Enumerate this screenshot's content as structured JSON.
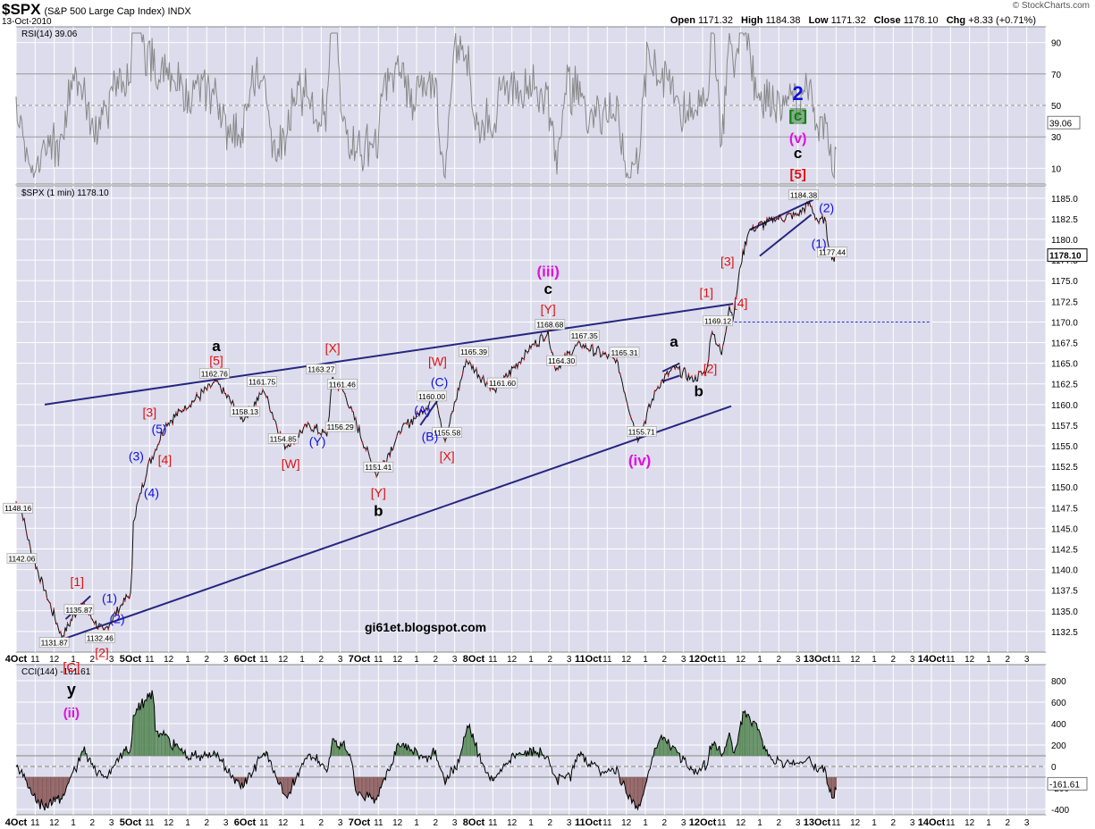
{
  "header": {
    "symbol": "$SPX",
    "description": "(S&P 500 Large Cap Index) INDX",
    "date": "13-Oct-2010",
    "open_label": "Open",
    "open": "1171.32",
    "high_label": "High",
    "high": "1184.38",
    "low_label": "Low",
    "low": "1171.32",
    "close_label": "Close",
    "close": "1178.10",
    "chg_label": "Chg",
    "chg": "+8.33 (+0.71%)",
    "credit": "© StockCharts.com"
  },
  "watermark": "gi61et.blogspot.com",
  "colors": {
    "panel_bg": "#dcdcec",
    "grid": "#ffffff",
    "trend": "#262680",
    "wave_red": "#e01010",
    "wave_blue": "#1010e0",
    "wave_magenta": "#e010e0",
    "wave_green": "#108010",
    "price_line": "#111111",
    "rsi_line": "#888888",
    "cci_pos": "#5a8a5a",
    "cci_neg": "#8a5a5a"
  },
  "chart_data": [
    {
      "type": "line",
      "name": "RSI",
      "label": "RSI(14) 39.06",
      "current": "39.06",
      "y_ticks": [
        "10",
        "30",
        "50",
        "70",
        "90"
      ],
      "ylim": [
        0,
        100
      ],
      "notes": [
        "2",
        "[c]",
        "(v)",
        "c",
        "[5]"
      ]
    },
    {
      "type": "line",
      "name": "$SPX (1 min)",
      "label": "$SPX (1 min) 1178.10",
      "current": "1178.10",
      "ylim": [
        1130,
        1186.5
      ],
      "y_ticks": [
        "1132.5",
        "1135.0",
        "1137.5",
        "1140.0",
        "1142.5",
        "1145.0",
        "1147.5",
        "1150.0",
        "1152.5",
        "1155.0",
        "1157.5",
        "1160.0",
        "1162.5",
        "1165.0",
        "1167.5",
        "1170.0",
        "1172.5",
        "1175.0",
        "1177.5",
        "1180.0",
        "1182.5",
        "1185.0"
      ],
      "x_ticks": [
        "4Oct",
        "11",
        "12",
        "1",
        "2",
        "3",
        "5Oct",
        "11",
        "12",
        "1",
        "2",
        "3",
        "6Oct",
        "11",
        "12",
        "1",
        "2",
        "3",
        "7Oct",
        "11",
        "12",
        "1",
        "2",
        "3",
        "8Oct",
        "11",
        "12",
        "1",
        "2",
        "3",
        "11Oct",
        "11",
        "12",
        "1",
        "2",
        "3",
        "12Oct",
        "11",
        "12",
        "1",
        "2",
        "3",
        "13Oct",
        "11",
        "12",
        "1",
        "2",
        "3",
        "14Oct",
        "11",
        "12",
        "1",
        "2",
        "3"
      ],
      "key_points": [
        {
          "t": 0,
          "v": 1148.16
        },
        {
          "t": 0.3,
          "v": 1147.0
        },
        {
          "t": 0.8,
          "v": 1142.06
        },
        {
          "t": 1.5,
          "v": 1137.5
        },
        {
          "t": 2.4,
          "v": 1131.87
        },
        {
          "t": 3.4,
          "v": 1135.87
        },
        {
          "t": 4.0,
          "v": 1134.0
        },
        {
          "t": 4.6,
          "v": 1132.46
        },
        {
          "t": 5.6,
          "v": 1136.0
        },
        {
          "t": 6.0,
          "v": 1137.0
        },
        {
          "t": 6.08,
          "v": 1140.0
        },
        {
          "t": 6.15,
          "v": 1146.0
        },
        {
          "t": 6.5,
          "v": 1149.0
        },
        {
          "t": 6.9,
          "v": 1152.5
        },
        {
          "t": 7.3,
          "v": 1154.5
        },
        {
          "t": 7.8,
          "v": 1157.5
        },
        {
          "t": 8.8,
          "v": 1159.5
        },
        {
          "t": 10.5,
          "v": 1162.76
        },
        {
          "t": 11.9,
          "v": 1158.13
        },
        {
          "t": 13.0,
          "v": 1161.75
        },
        {
          "t": 14.1,
          "v": 1154.85
        },
        {
          "t": 15.3,
          "v": 1157.5
        },
        {
          "t": 16.3,
          "v": 1156.29
        },
        {
          "t": 16.6,
          "v": 1163.27
        },
        {
          "t": 17.2,
          "v": 1161.46
        },
        {
          "t": 18.9,
          "v": 1151.41
        },
        {
          "t": 20.2,
          "v": 1157.0
        },
        {
          "t": 21.2,
          "v": 1159.0
        },
        {
          "t": 22.0,
          "v": 1161.2
        },
        {
          "t": 22.5,
          "v": 1155.58
        },
        {
          "t": 23.6,
          "v": 1165.39
        },
        {
          "t": 25.1,
          "v": 1161.6
        },
        {
          "t": 27.0,
          "v": 1167.0
        },
        {
          "t": 27.9,
          "v": 1168.68
        },
        {
          "t": 28.3,
          "v": 1164.3
        },
        {
          "t": 29.5,
          "v": 1167.35
        },
        {
          "t": 31.5,
          "v": 1165.31
        },
        {
          "t": 32.6,
          "v": 1155.71
        },
        {
          "t": 33.6,
          "v": 1162.0
        },
        {
          "t": 34.5,
          "v": 1164.5
        },
        {
          "t": 35.5,
          "v": 1163.0
        },
        {
          "t": 36.2,
          "v": 1164.0
        },
        {
          "t": 36.5,
          "v": 1169.12
        },
        {
          "t": 37.0,
          "v": 1166.0
        },
        {
          "t": 37.4,
          "v": 1172.0
        },
        {
          "t": 37.6,
          "v": 1170.5
        },
        {
          "t": 38.0,
          "v": 1177.0
        },
        {
          "t": 38.4,
          "v": 1181.0
        },
        {
          "t": 39.8,
          "v": 1182.5
        },
        {
          "t": 41.0,
          "v": 1183.0
        },
        {
          "t": 41.6,
          "v": 1184.38
        },
        {
          "t": 42.1,
          "v": 1182.0
        },
        {
          "t": 42.4,
          "v": 1182.5
        },
        {
          "t": 42.6,
          "v": 1179.5
        },
        {
          "t": 42.9,
          "v": 1177.44
        },
        {
          "t": 43.0,
          "v": 1178.1
        }
      ],
      "price_labels": [
        {
          "text": "1148.16",
          "t": 0.1,
          "v": 1148.16
        },
        {
          "text": "1142.06",
          "t": 0.3,
          "v": 1142.06
        },
        {
          "text": "1131.87",
          "t": 2.0,
          "v": 1131.87
        },
        {
          "text": "1135.87",
          "t": 3.3,
          "v": 1135.87
        },
        {
          "text": "1132.46",
          "t": 4.4,
          "v": 1132.46
        },
        {
          "text": "1162.76",
          "t": 10.4,
          "v": 1162.76
        },
        {
          "text": "1158.13",
          "t": 12.0,
          "v": 1158.13
        },
        {
          "text": "1161.75",
          "t": 12.9,
          "v": 1161.75
        },
        {
          "text": "1154.85",
          "t": 14.0,
          "v": 1154.85
        },
        {
          "text": "1163.27",
          "t": 16.0,
          "v": 1163.27
        },
        {
          "text": "1161.46",
          "t": 17.1,
          "v": 1161.46
        },
        {
          "text": "1156.29",
          "t": 17.0,
          "v": 1156.29
        },
        {
          "text": "1151.41",
          "t": 19.0,
          "v": 1151.41
        },
        {
          "text": "1160.00",
          "t": 21.8,
          "v": 1160.0
        },
        {
          "text": "1155.58",
          "t": 22.6,
          "v": 1155.58
        },
        {
          "text": "1165.39",
          "t": 24.0,
          "v": 1165.39
        },
        {
          "text": "1161.60",
          "t": 25.5,
          "v": 1161.6
        },
        {
          "text": "1168.68",
          "t": 28.0,
          "v": 1168.68
        },
        {
          "text": "1164.30",
          "t": 28.6,
          "v": 1164.3
        },
        {
          "text": "1167.35",
          "t": 29.8,
          "v": 1167.35
        },
        {
          "text": "1165.31",
          "t": 31.9,
          "v": 1165.31
        },
        {
          "text": "1155.71",
          "t": 32.8,
          "v": 1155.71
        },
        {
          "text": "1169.12",
          "t": 36.8,
          "v": 1169.12
        },
        {
          "text": "1184.38",
          "t": 41.3,
          "v": 1184.38
        },
        {
          "text": "1177.44",
          "t": 42.8,
          "v": 1177.44
        }
      ],
      "annotations": [
        {
          "text": "[1]",
          "t": 3.2,
          "v": 1138.0,
          "color": "red"
        },
        {
          "text": "(1)",
          "t": 4.9,
          "v": 1136.0,
          "color": "blue"
        },
        {
          "text": "(2)",
          "t": 5.3,
          "v": 1133.5,
          "color": "blue"
        },
        {
          "text": "[2]",
          "t": 4.5,
          "v": 1129.4,
          "color": "red"
        },
        {
          "text": "(3)",
          "t": 6.3,
          "v": 1153.2,
          "color": "blue"
        },
        {
          "text": "(4)",
          "t": 7.1,
          "v": 1148.8,
          "color": "blue"
        },
        {
          "text": "(5)",
          "t": 7.5,
          "v": 1156.5,
          "color": "blue"
        },
        {
          "text": "[3]",
          "t": 7.0,
          "v": 1158.5,
          "color": "red"
        },
        {
          "text": "[4]",
          "t": 7.8,
          "v": 1152.8,
          "color": "red"
        },
        {
          "text": "a",
          "t": 10.5,
          "v": 1166.5,
          "color": "black"
        },
        {
          "text": "[5]",
          "t": 10.5,
          "v": 1164.8,
          "color": "red"
        },
        {
          "text": "[W]",
          "t": 14.4,
          "v": 1152.3,
          "color": "red"
        },
        {
          "text": "(Y)",
          "t": 15.8,
          "v": 1155.0,
          "color": "blue"
        },
        {
          "text": "[X]",
          "t": 16.6,
          "v": 1166.3,
          "color": "red"
        },
        {
          "text": "[Y]",
          "t": 19.0,
          "v": 1148.8,
          "color": "red"
        },
        {
          "text": "b",
          "t": 19.0,
          "v": 1146.5,
          "color": "black"
        },
        {
          "text": "(A)",
          "t": 21.3,
          "v": 1158.8,
          "color": "blue"
        },
        {
          "text": "(C)",
          "t": 22.2,
          "v": 1162.2,
          "color": "blue"
        },
        {
          "text": "[W]",
          "t": 22.1,
          "v": 1164.7,
          "color": "red"
        },
        {
          "text": "(B)",
          "t": 21.7,
          "v": 1155.6,
          "color": "blue"
        },
        {
          "text": "[X]",
          "t": 22.6,
          "v": 1153.2,
          "color": "red"
        },
        {
          "text": "(iii)",
          "t": 27.9,
          "v": 1175.5,
          "color": "magenta"
        },
        {
          "text": "c",
          "t": 27.9,
          "v": 1173.4,
          "color": "black"
        },
        {
          "text": "[Y]",
          "t": 27.9,
          "v": 1171.0,
          "color": "red"
        },
        {
          "text": "(iv)",
          "t": 32.7,
          "v": 1152.6,
          "color": "magenta"
        },
        {
          "text": "a",
          "t": 34.5,
          "v": 1167.0,
          "color": "black"
        },
        {
          "text": "b",
          "t": 35.8,
          "v": 1161.0,
          "color": "black"
        },
        {
          "text": "[2]",
          "t": 36.4,
          "v": 1163.8,
          "color": "red"
        },
        {
          "text": "[1]",
          "t": 36.2,
          "v": 1173.0,
          "color": "red"
        },
        {
          "text": "[3]",
          "t": 37.3,
          "v": 1176.8,
          "color": "red"
        },
        {
          "text": "[4]",
          "t": 38.0,
          "v": 1171.8,
          "color": "red"
        },
        {
          "text": "(2)",
          "t": 42.5,
          "v": 1183.3,
          "color": "blue"
        },
        {
          "text": "(1)",
          "t": 42.1,
          "v": 1179.0,
          "color": "blue"
        }
      ],
      "trendlines": [
        {
          "t1": 1.5,
          "v1": 1160.0,
          "t2": 37.6,
          "v2": 1172.2
        },
        {
          "t1": 2.5,
          "v1": 1131.6,
          "t2": 37.5,
          "v2": 1159.8
        },
        {
          "t1": 36.5,
          "v1": 1170.0,
          "t2": 48.0,
          "v2": 1170.0,
          "dashed": true
        },
        {
          "t1": 38.5,
          "v1": 1181.2,
          "t2": 41.8,
          "v2": 1184.8
        },
        {
          "t1": 39.0,
          "v1": 1178.0,
          "t2": 41.7,
          "v2": 1183.0
        },
        {
          "t1": 2.6,
          "v1": 1134.0,
          "t2": 3.9,
          "v2": 1136.8
        },
        {
          "t1": 21.2,
          "v1": 1157.5,
          "t2": 22.4,
          "v2": 1161.5
        },
        {
          "t1": 33.9,
          "v1": 1164.0,
          "t2": 34.8,
          "v2": 1165.0
        },
        {
          "t1": 33.9,
          "v1": 1162.8,
          "t2": 34.8,
          "v2": 1163.5
        }
      ]
    },
    {
      "type": "line",
      "name": "CCI",
      "label": "CCI(144) -161.61",
      "current": "-161.61",
      "y_ticks": [
        "-400",
        "-200",
        "0",
        "200",
        "400",
        "600",
        "800"
      ],
      "ylim": [
        -450,
        950
      ],
      "notes": [
        "[C]",
        "y",
        "(ii)"
      ]
    }
  ]
}
